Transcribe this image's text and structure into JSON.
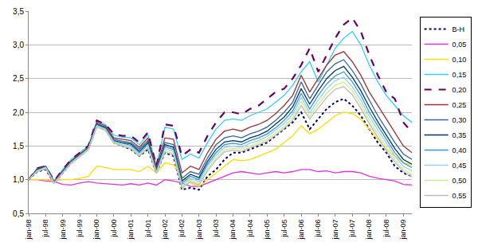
{
  "chart_data": {
    "type": "line",
    "categories": [
      "jan-98",
      null,
      "jul-98",
      null,
      "jan-99",
      null,
      "jul-99",
      null,
      "jan-00",
      null,
      "jul-00",
      null,
      "jan-01",
      null,
      "jul-01",
      null,
      "jan-02",
      null,
      "jul-02",
      null,
      "jan-03",
      null,
      "jul-03",
      null,
      "jan-04",
      null,
      "jul-04",
      null,
      "jan-05",
      null,
      "jul-05",
      null,
      "jan-06",
      null,
      "jul-06",
      null,
      "jan-07",
      null,
      "jul-07",
      null,
      "jan-08",
      null,
      "jul-08",
      null,
      "jan-09",
      null
    ],
    "ylim": [
      0.5,
      3.5
    ],
    "yticks": [
      {
        "value": 0.5,
        "label": "0,5"
      },
      {
        "value": 1.0,
        "label": "1,0"
      },
      {
        "value": 1.5,
        "label": "1,5"
      },
      {
        "value": 2.0,
        "label": "2,0"
      },
      {
        "value": 2.5,
        "label": "2,5"
      },
      {
        "value": 3.0,
        "label": "3,0"
      },
      {
        "value": 3.5,
        "label": "3,5"
      }
    ],
    "grid": true,
    "legend": "right",
    "series": [
      {
        "name": "B-H",
        "color": "#000066",
        "line_style": "dot",
        "values": [
          1.0,
          1.12,
          1.15,
          0.95,
          1.1,
          1.25,
          1.35,
          1.45,
          1.8,
          1.75,
          1.55,
          1.5,
          1.45,
          1.35,
          1.45,
          1.1,
          1.4,
          1.35,
          0.85,
          0.88,
          0.85,
          1.05,
          1.15,
          1.3,
          1.4,
          1.4,
          1.45,
          1.5,
          1.55,
          1.65,
          1.75,
          1.85,
          2.0,
          1.75,
          1.9,
          2.05,
          2.15,
          2.2,
          2.1,
          1.95,
          1.75,
          1.55,
          1.4,
          1.2,
          1.1,
          1.05
        ]
      },
      {
        "name": "0,05",
        "color": "#dd33dd",
        "line_style": "solid",
        "values": [
          1.0,
          1.0,
          0.98,
          0.97,
          0.93,
          0.92,
          0.95,
          0.97,
          0.95,
          0.94,
          0.93,
          0.92,
          0.94,
          0.92,
          0.95,
          0.92,
          1.0,
          0.98,
          0.95,
          0.9,
          0.9,
          0.95,
          1.0,
          1.05,
          1.1,
          1.12,
          1.1,
          1.08,
          1.1,
          1.12,
          1.1,
          1.12,
          1.15,
          1.15,
          1.12,
          1.13,
          1.1,
          1.12,
          1.12,
          1.1,
          1.05,
          1.02,
          1.0,
          0.98,
          0.93,
          0.92
        ]
      },
      {
        "name": "0,10",
        "color": "#ffdd00",
        "line_style": "solid",
        "values": [
          1.0,
          1.0,
          1.0,
          0.98,
          1.0,
          1.0,
          1.02,
          1.05,
          1.2,
          1.18,
          1.15,
          1.15,
          1.15,
          1.12,
          1.2,
          1.1,
          1.25,
          1.22,
          1.05,
          0.95,
          0.9,
          1.0,
          1.1,
          1.2,
          1.3,
          1.28,
          1.3,
          1.35,
          1.4,
          1.45,
          1.55,
          1.65,
          1.8,
          1.68,
          1.75,
          1.85,
          1.95,
          2.0,
          1.98,
          1.9,
          1.75,
          1.6,
          1.45,
          1.35,
          1.25,
          1.22
        ]
      },
      {
        "name": "0,15",
        "color": "#33ccff",
        "line_style": "solid",
        "values": [
          1.0,
          1.17,
          1.2,
          0.98,
          1.15,
          1.3,
          1.4,
          1.5,
          1.87,
          1.82,
          1.66,
          1.63,
          1.62,
          1.52,
          1.67,
          1.2,
          1.78,
          1.75,
          1.3,
          1.38,
          1.32,
          1.55,
          1.75,
          1.88,
          1.9,
          1.88,
          1.95,
          2.0,
          2.05,
          2.15,
          2.25,
          2.4,
          2.6,
          2.75,
          2.45,
          2.7,
          2.95,
          3.1,
          3.2,
          3.0,
          2.7,
          2.45,
          2.25,
          2.1,
          1.95,
          1.85
        ]
      },
      {
        "name": "0,20",
        "color": "#660066",
        "line_style": "dash",
        "values": [
          1.0,
          1.17,
          1.2,
          0.98,
          1.15,
          1.3,
          1.4,
          1.5,
          1.88,
          1.82,
          1.68,
          1.65,
          1.65,
          1.55,
          1.7,
          1.2,
          1.82,
          1.8,
          1.35,
          1.45,
          1.4,
          1.65,
          1.85,
          2.0,
          2.0,
          1.97,
          2.05,
          2.1,
          2.2,
          2.3,
          2.35,
          2.5,
          2.7,
          2.95,
          2.6,
          2.85,
          3.1,
          3.3,
          3.4,
          3.2,
          2.85,
          2.55,
          2.3,
          2.2,
          1.85,
          1.7
        ]
      },
      {
        "name": "0,25",
        "color": "#993333",
        "line_style": "solid",
        "values": [
          1.0,
          1.16,
          1.2,
          0.97,
          1.13,
          1.28,
          1.38,
          1.48,
          1.85,
          1.8,
          1.62,
          1.6,
          1.58,
          1.48,
          1.62,
          1.18,
          1.62,
          1.6,
          1.1,
          1.2,
          1.15,
          1.4,
          1.6,
          1.72,
          1.75,
          1.72,
          1.78,
          1.82,
          1.88,
          1.98,
          2.1,
          2.25,
          2.55,
          2.3,
          2.5,
          2.7,
          2.85,
          2.9,
          2.75,
          2.55,
          2.3,
          2.1,
          1.9,
          1.7,
          1.5,
          1.4
        ]
      },
      {
        "name": "0,30",
        "color": "#336699",
        "line_style": "solid",
        "values": [
          1.0,
          1.15,
          1.2,
          0.96,
          1.12,
          1.27,
          1.37,
          1.47,
          1.83,
          1.78,
          1.6,
          1.57,
          1.55,
          1.45,
          1.58,
          1.15,
          1.55,
          1.52,
          1.02,
          1.12,
          1.08,
          1.32,
          1.52,
          1.62,
          1.65,
          1.62,
          1.68,
          1.72,
          1.78,
          1.88,
          2.0,
          2.15,
          2.45,
          2.2,
          2.4,
          2.6,
          2.72,
          2.78,
          2.62,
          2.42,
          2.18,
          1.95,
          1.75,
          1.55,
          1.38,
          1.3
        ]
      },
      {
        "name": "0,35",
        "color": "#003366",
        "line_style": "solid",
        "values": [
          1.0,
          1.15,
          1.19,
          0.96,
          1.12,
          1.26,
          1.36,
          1.46,
          1.82,
          1.77,
          1.58,
          1.55,
          1.53,
          1.42,
          1.55,
          1.13,
          1.52,
          1.48,
          0.98,
          1.08,
          1.03,
          1.27,
          1.45,
          1.56,
          1.58,
          1.56,
          1.62,
          1.66,
          1.72,
          1.82,
          1.93,
          2.08,
          2.35,
          2.12,
          2.32,
          2.5,
          2.62,
          2.68,
          2.52,
          2.32,
          2.08,
          1.86,
          1.66,
          1.46,
          1.3,
          1.23
        ]
      },
      {
        "name": "0,40",
        "color": "#3399cc",
        "line_style": "solid",
        "values": [
          1.0,
          1.14,
          1.19,
          0.96,
          1.11,
          1.26,
          1.36,
          1.46,
          1.81,
          1.76,
          1.57,
          1.54,
          1.51,
          1.4,
          1.53,
          1.12,
          1.49,
          1.45,
          0.95,
          1.05,
          1.0,
          1.23,
          1.4,
          1.52,
          1.54,
          1.52,
          1.58,
          1.62,
          1.68,
          1.77,
          1.88,
          2.02,
          2.28,
          2.05,
          2.25,
          2.42,
          2.54,
          2.6,
          2.45,
          2.25,
          2.0,
          1.8,
          1.6,
          1.4,
          1.25,
          1.18
        ]
      },
      {
        "name": "0,45",
        "color": "#99ccff",
        "line_style": "solid",
        "values": [
          1.0,
          1.13,
          1.18,
          0.95,
          1.11,
          1.25,
          1.35,
          1.45,
          1.8,
          1.75,
          1.56,
          1.52,
          1.49,
          1.38,
          1.51,
          1.11,
          1.46,
          1.42,
          0.92,
          1.02,
          0.97,
          1.2,
          1.36,
          1.48,
          1.5,
          1.48,
          1.54,
          1.58,
          1.64,
          1.73,
          1.83,
          1.97,
          2.22,
          1.99,
          2.18,
          2.35,
          2.47,
          2.52,
          2.38,
          2.18,
          1.94,
          1.74,
          1.54,
          1.35,
          1.2,
          1.13
        ]
      },
      {
        "name": "0,50",
        "color": "#ccee88",
        "line_style": "solid",
        "values": [
          1.0,
          1.13,
          1.17,
          0.95,
          1.1,
          1.25,
          1.35,
          1.45,
          1.79,
          1.74,
          1.55,
          1.51,
          1.47,
          1.36,
          1.49,
          1.1,
          1.43,
          1.39,
          0.89,
          0.99,
          0.94,
          1.16,
          1.32,
          1.44,
          1.47,
          1.45,
          1.5,
          1.55,
          1.6,
          1.69,
          1.79,
          1.92,
          2.16,
          1.94,
          2.12,
          2.28,
          2.4,
          2.45,
          2.32,
          2.12,
          1.88,
          1.68,
          1.48,
          1.3,
          1.15,
          1.08
        ]
      },
      {
        "name": "0,55",
        "color": "#bbbbbb",
        "line_style": "solid",
        "values": [
          1.0,
          1.12,
          1.16,
          0.95,
          1.1,
          1.24,
          1.34,
          1.44,
          1.78,
          1.73,
          1.54,
          1.5,
          1.46,
          1.35,
          1.47,
          1.09,
          1.41,
          1.37,
          0.87,
          0.97,
          0.92,
          1.13,
          1.29,
          1.41,
          1.44,
          1.42,
          1.47,
          1.52,
          1.57,
          1.66,
          1.76,
          1.88,
          2.1,
          1.9,
          2.06,
          2.22,
          2.34,
          2.38,
          2.26,
          2.06,
          1.83,
          1.63,
          1.43,
          1.26,
          1.12,
          1.05
        ]
      }
    ]
  }
}
